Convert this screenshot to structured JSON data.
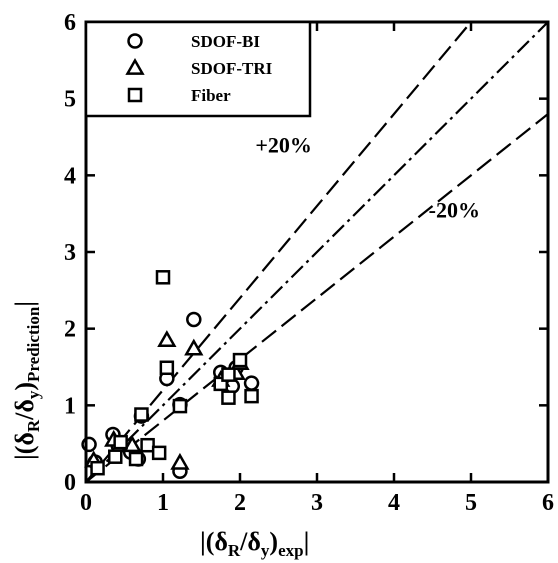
{
  "chart_data": {
    "type": "scatter",
    "title": "",
    "xlabel": {
      "prefix": "|(δ",
      "sub1": "R",
      "mid": "/δ",
      "sub2": "y",
      "close": ")",
      "sub3": "exp",
      "suffix": "|"
    },
    "ylabel": {
      "prefix": "|(δ",
      "sub1": "R",
      "mid": "/δ",
      "sub2": "y",
      "close": ")",
      "sub3": "Prediction",
      "suffix": "|"
    },
    "xlim": [
      0,
      6
    ],
    "ylim": [
      0,
      6
    ],
    "xticks": [
      "0",
      "1",
      "2",
      "3",
      "4",
      "5",
      "6"
    ],
    "yticks": [
      "0",
      "1",
      "2",
      "3",
      "4",
      "5",
      "6"
    ],
    "grid": false,
    "legend_position": "top-left",
    "series": [
      {
        "name": "SDOF-BI",
        "marker": "circle",
        "points": [
          [
            0.04,
            0.49
          ],
          [
            0.12,
            0.26
          ],
          [
            0.35,
            0.62
          ],
          [
            0.42,
            0.47
          ],
          [
            0.58,
            0.39
          ],
          [
            0.68,
            0.3
          ],
          [
            0.72,
            0.86
          ],
          [
            1.05,
            1.35
          ],
          [
            1.22,
            1.01
          ],
          [
            1.22,
            0.14
          ],
          [
            1.4,
            2.12
          ],
          [
            1.75,
            1.43
          ],
          [
            1.9,
            1.25
          ],
          [
            1.95,
            1.49
          ],
          [
            2.15,
            1.29
          ]
        ]
      },
      {
        "name": "SDOF-TRI",
        "marker": "triangle",
        "points": [
          [
            0.1,
            0.28
          ],
          [
            0.36,
            0.55
          ],
          [
            0.6,
            0.48
          ],
          [
            1.05,
            1.85
          ],
          [
            1.22,
            0.25
          ],
          [
            1.4,
            1.74
          ],
          [
            1.75,
            1.33
          ],
          [
            1.95,
            1.42
          ],
          [
            2.0,
            1.55
          ]
        ]
      },
      {
        "name": "Fiber",
        "marker": "square",
        "points": [
          [
            0.15,
            0.18
          ],
          [
            0.38,
            0.33
          ],
          [
            0.45,
            0.52
          ],
          [
            0.65,
            0.3
          ],
          [
            0.72,
            0.88
          ],
          [
            0.8,
            0.48
          ],
          [
            0.95,
            0.38
          ],
          [
            1.0,
            2.67
          ],
          [
            1.05,
            1.49
          ],
          [
            1.22,
            0.99
          ],
          [
            1.75,
            1.28
          ],
          [
            1.85,
            1.1
          ],
          [
            1.85,
            1.4
          ],
          [
            2.0,
            1.59
          ],
          [
            2.15,
            1.12
          ]
        ]
      }
    ],
    "reference_lines": [
      {
        "name": "+20% bound",
        "slope": 1.2
      },
      {
        "name": "1:1 line",
        "slope": 1.0
      },
      {
        "name": "-20% bound",
        "slope": 0.8
      }
    ],
    "annotations": [
      "+20%",
      "-20%"
    ]
  }
}
